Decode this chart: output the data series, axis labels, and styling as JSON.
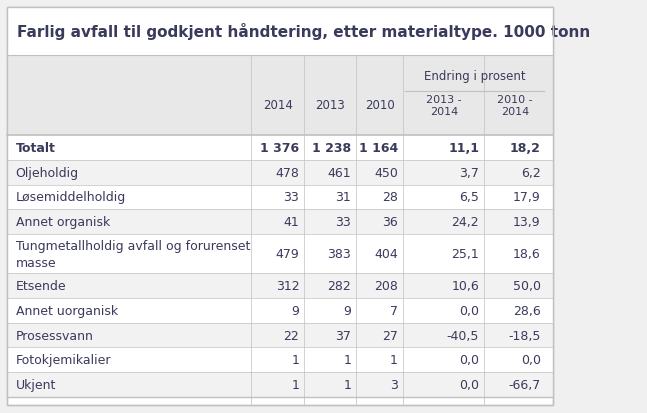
{
  "title": "Farlig avfall til godkjent håndtering, etter materialtype. 1000 tonn",
  "rows": [
    {
      "label": "Totalt",
      "v2014": "1 376",
      "v2013": "1 238",
      "v2010": "1 164",
      "c1": "11,1",
      "c2": "18,2",
      "bold": true
    },
    {
      "label": "Oljeholdig",
      "v2014": "478",
      "v2013": "461",
      "v2010": "450",
      "c1": "3,7",
      "c2": "6,2",
      "bold": false
    },
    {
      "label": "Løsemiddelholdig",
      "v2014": "33",
      "v2013": "31",
      "v2010": "28",
      "c1": "6,5",
      "c2": "17,9",
      "bold": false
    },
    {
      "label": "Annet organisk",
      "v2014": "41",
      "v2013": "33",
      "v2010": "36",
      "c1": "24,2",
      "c2": "13,9",
      "bold": false
    },
    {
      "label": "Tungmetallholdig avfall og forurenset\nmasse",
      "v2014": "479",
      "v2013": "383",
      "v2010": "404",
      "c1": "25,1",
      "c2": "18,6",
      "bold": false
    },
    {
      "label": "Etsende",
      "v2014": "312",
      "v2013": "282",
      "v2010": "208",
      "c1": "10,6",
      "c2": "50,0",
      "bold": false
    },
    {
      "label": "Annet uorganisk",
      "v2014": "9",
      "v2013": "9",
      "v2010": "7",
      "c1": "0,0",
      "c2": "28,6",
      "bold": false
    },
    {
      "label": "Prosessvann",
      "v2014": "22",
      "v2013": "37",
      "v2010": "27",
      "c1": "-40,5",
      "c2": "-18,5",
      "bold": false
    },
    {
      "label": "Fotokjemikalier",
      "v2014": "1",
      "v2013": "1",
      "v2010": "1",
      "c1": "0,0",
      "c2": "0,0",
      "bold": false
    },
    {
      "label": "Ukjent",
      "v2014": "1",
      "v2013": "1",
      "v2010": "3",
      "c1": "0,0",
      "c2": "-66,7",
      "bold": false
    }
  ],
  "bg_outer": "#f0f0f0",
  "bg_white": "#ffffff",
  "bg_header": "#e8e8e8",
  "bg_row_light": "#f2f2f2",
  "bg_row_dark": "#e6e6e6",
  "border_color": "#c0c0c0",
  "text_color": "#3a3a5c",
  "title_fontsize": 11,
  "cell_fontsize": 9,
  "header_fontsize": 8.5
}
